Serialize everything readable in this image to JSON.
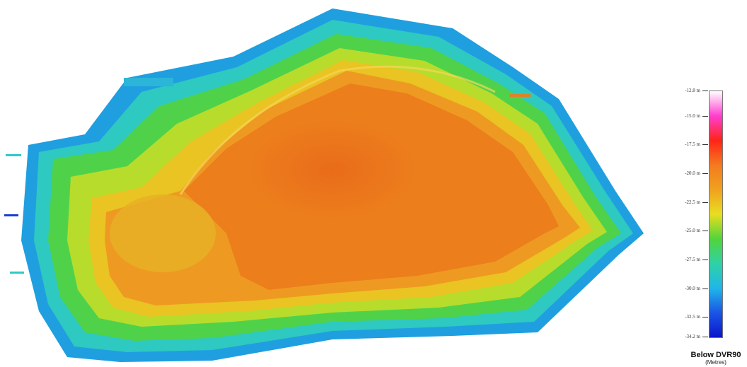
{
  "colors": {
    "c-128": "#ff3fd0",
    "c-150": "#ff2418",
    "c-175": "#f47a1e",
    "c-200": "#f0a11e",
    "c-225": "#e8de20",
    "c-250": "#52d43a",
    "c-275": "#2fd2a6",
    "c-300": "#1fb7e8",
    "c-325": "#1b55e6",
    "c-342": "#0a16cc"
  },
  "legend": {
    "ticks": [
      {
        "label": "-12.8 m",
        "value": -12.8
      },
      {
        "label": "-15.0 m",
        "value": -15.0
      },
      {
        "label": "-17.5 m",
        "value": -17.5
      },
      {
        "label": "-20.0 m",
        "value": -20.0
      },
      {
        "label": "-22.5 m",
        "value": -22.5
      },
      {
        "label": "-25.0 m",
        "value": -25.0
      },
      {
        "label": "-27.5 m",
        "value": -27.5
      },
      {
        "label": "-30.0 m",
        "value": -30.0
      },
      {
        "label": "-32.5 m",
        "value": -32.5
      },
      {
        "label": "-34.2 m",
        "value": -34.2
      }
    ],
    "min_value": -34.2,
    "max_value": -12.8,
    "title": "Below DVR90",
    "units": "(Metres)"
  }
}
